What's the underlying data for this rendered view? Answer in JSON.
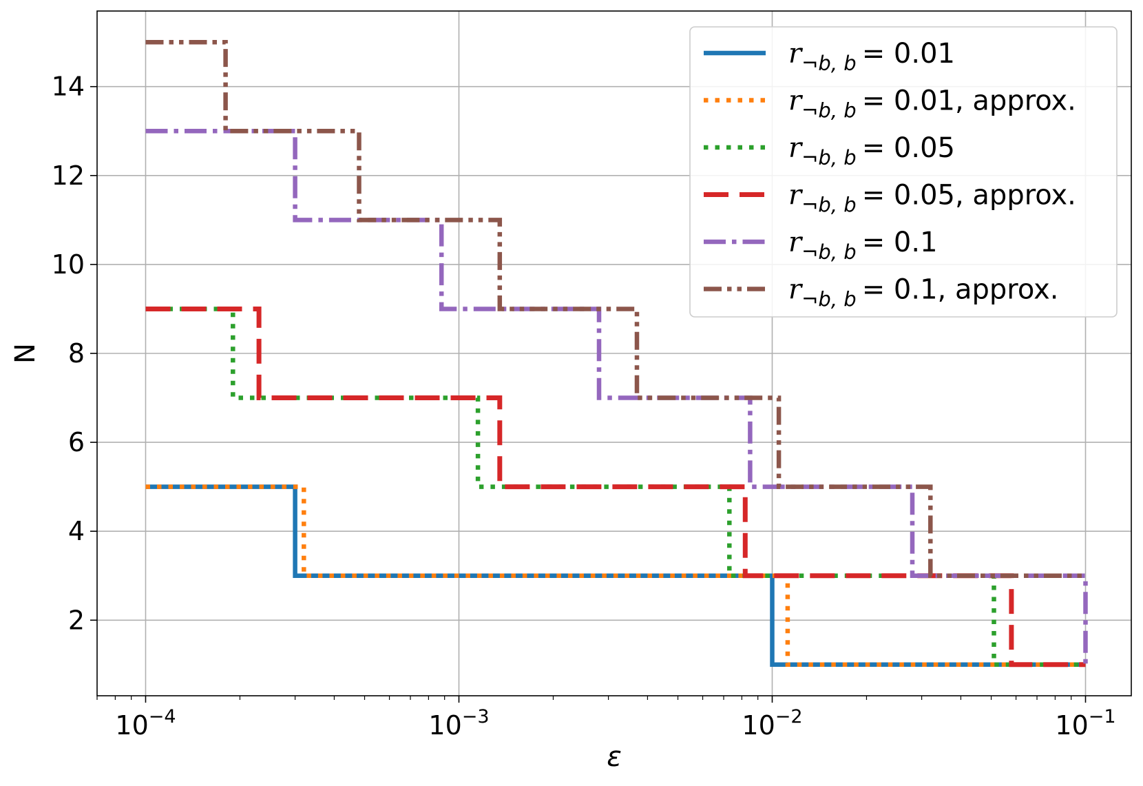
{
  "chart_data": {
    "type": "line",
    "step": true,
    "xlabel": "ε",
    "ylabel": "N",
    "xscale": "log",
    "xlim": [
      7e-05,
      0.14
    ],
    "ylim": [
      0.3,
      15.7
    ],
    "xticks": [
      {
        "value": 0.0001,
        "base": "10",
        "exp": "−4"
      },
      {
        "value": 0.001,
        "base": "10",
        "exp": "−3"
      },
      {
        "value": 0.01,
        "base": "10",
        "exp": "−2"
      },
      {
        "value": 0.1,
        "base": "10",
        "exp": "−1"
      }
    ],
    "yticks": [
      2,
      4,
      6,
      8,
      10,
      12,
      14
    ],
    "grid": true,
    "legend": {
      "placement": "top-right"
    },
    "legend_symbol": "r",
    "legend_subscript": "¬b, b",
    "series": [
      {
        "name": "r¬b, b = 0.01",
        "label_value": "= 0.01",
        "label_suffix": "",
        "color": "#1f77b4",
        "style": "solid",
        "points": [
          [
            0.0001,
            5
          ],
          [
            0.0003,
            5
          ],
          [
            0.0003,
            3
          ],
          [
            0.01,
            3
          ],
          [
            0.01,
            1
          ],
          [
            0.1,
            1
          ]
        ]
      },
      {
        "name": "r¬b, b = 0.01, approx.",
        "label_value": "= 0.01",
        "label_suffix": ", approx.",
        "color": "#ff7f0e",
        "style": "dotted",
        "points": [
          [
            0.0001,
            5
          ],
          [
            0.00032,
            5
          ],
          [
            0.00032,
            3
          ],
          [
            0.0112,
            3
          ],
          [
            0.0112,
            1
          ],
          [
            0.1,
            1
          ]
        ]
      },
      {
        "name": "r¬b, b = 0.05",
        "label_value": "= 0.05",
        "label_suffix": "",
        "color": "#2ca02c",
        "style": "dotted",
        "points": [
          [
            0.0001,
            9
          ],
          [
            0.00019,
            9
          ],
          [
            0.00019,
            7
          ],
          [
            0.00115,
            7
          ],
          [
            0.00115,
            5
          ],
          [
            0.0073,
            5
          ],
          [
            0.0073,
            3
          ],
          [
            0.051,
            3
          ],
          [
            0.051,
            1
          ],
          [
            0.1,
            1
          ]
        ]
      },
      {
        "name": "r¬b, b = 0.05, approx.",
        "label_value": "= 0.05",
        "label_suffix": ", approx.",
        "color": "#d62728",
        "style": "dashed",
        "points": [
          [
            0.0001,
            9
          ],
          [
            0.00023,
            9
          ],
          [
            0.00023,
            7
          ],
          [
            0.00135,
            7
          ],
          [
            0.00135,
            5
          ],
          [
            0.0082,
            5
          ],
          [
            0.0082,
            3
          ],
          [
            0.058,
            3
          ],
          [
            0.058,
            1
          ],
          [
            0.1,
            1
          ]
        ]
      },
      {
        "name": "r¬b, b = 0.1",
        "label_value": "= 0.1",
        "label_suffix": "",
        "color": "#9467bd",
        "style": "dashdot",
        "points": [
          [
            0.0001,
            13
          ],
          [
            0.0003,
            13
          ],
          [
            0.0003,
            11
          ],
          [
            0.00088,
            11
          ],
          [
            0.00088,
            9
          ],
          [
            0.0028,
            9
          ],
          [
            0.0028,
            7
          ],
          [
            0.0085,
            7
          ],
          [
            0.0085,
            5
          ],
          [
            0.028,
            5
          ],
          [
            0.028,
            3
          ],
          [
            0.1,
            3
          ],
          [
            0.1,
            1
          ]
        ]
      },
      {
        "name": "r¬b, b = 0.1, approx.",
        "label_value": "= 0.1",
        "label_suffix": ", approx.",
        "color": "#8c564b",
        "style": "dashdotdot",
        "points": [
          [
            0.0001,
            15
          ],
          [
            0.00018,
            15
          ],
          [
            0.00018,
            13
          ],
          [
            0.00048,
            13
          ],
          [
            0.00048,
            11
          ],
          [
            0.00135,
            11
          ],
          [
            0.00135,
            9
          ],
          [
            0.0037,
            9
          ],
          [
            0.0037,
            7
          ],
          [
            0.0105,
            7
          ],
          [
            0.0105,
            5
          ],
          [
            0.032,
            5
          ],
          [
            0.032,
            3
          ],
          [
            0.1,
            3
          ]
        ]
      }
    ]
  }
}
